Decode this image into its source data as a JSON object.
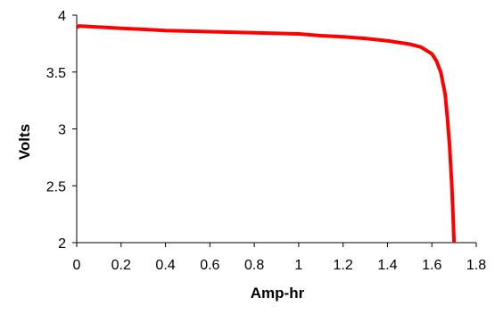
{
  "chart_data": {
    "type": "line",
    "title": "",
    "xlabel": "Amp-hr",
    "ylabel": "Volts",
    "xlim": [
      0,
      1.8
    ],
    "ylim": [
      2,
      4
    ],
    "x_ticks": [
      "0",
      "0.2",
      "0.4",
      "0.6",
      "0.8",
      "1",
      "1.2",
      "1.4",
      "1.6",
      "1.8"
    ],
    "y_ticks": [
      "2",
      "2.5",
      "3",
      "3.5",
      "4"
    ],
    "grid": false,
    "legend": "none",
    "series": [
      {
        "color": "#ff0000",
        "points": [
          [
            0.0,
            3.89
          ],
          [
            0.01,
            3.905
          ],
          [
            0.1,
            3.895
          ],
          [
            0.2,
            3.885
          ],
          [
            0.3,
            3.875
          ],
          [
            0.4,
            3.865
          ],
          [
            0.5,
            3.86
          ],
          [
            0.6,
            3.855
          ],
          [
            0.7,
            3.85
          ],
          [
            0.8,
            3.845
          ],
          [
            0.9,
            3.84
          ],
          [
            1.0,
            3.835
          ],
          [
            1.1,
            3.82
          ],
          [
            1.2,
            3.81
          ],
          [
            1.3,
            3.795
          ],
          [
            1.4,
            3.775
          ],
          [
            1.5,
            3.745
          ],
          [
            1.55,
            3.72
          ],
          [
            1.6,
            3.66
          ],
          [
            1.62,
            3.6
          ],
          [
            1.64,
            3.5
          ],
          [
            1.66,
            3.3
          ],
          [
            1.67,
            3.1
          ],
          [
            1.68,
            2.85
          ],
          [
            1.69,
            2.5
          ],
          [
            1.695,
            2.25
          ],
          [
            1.7,
            2.0
          ]
        ]
      }
    ]
  }
}
